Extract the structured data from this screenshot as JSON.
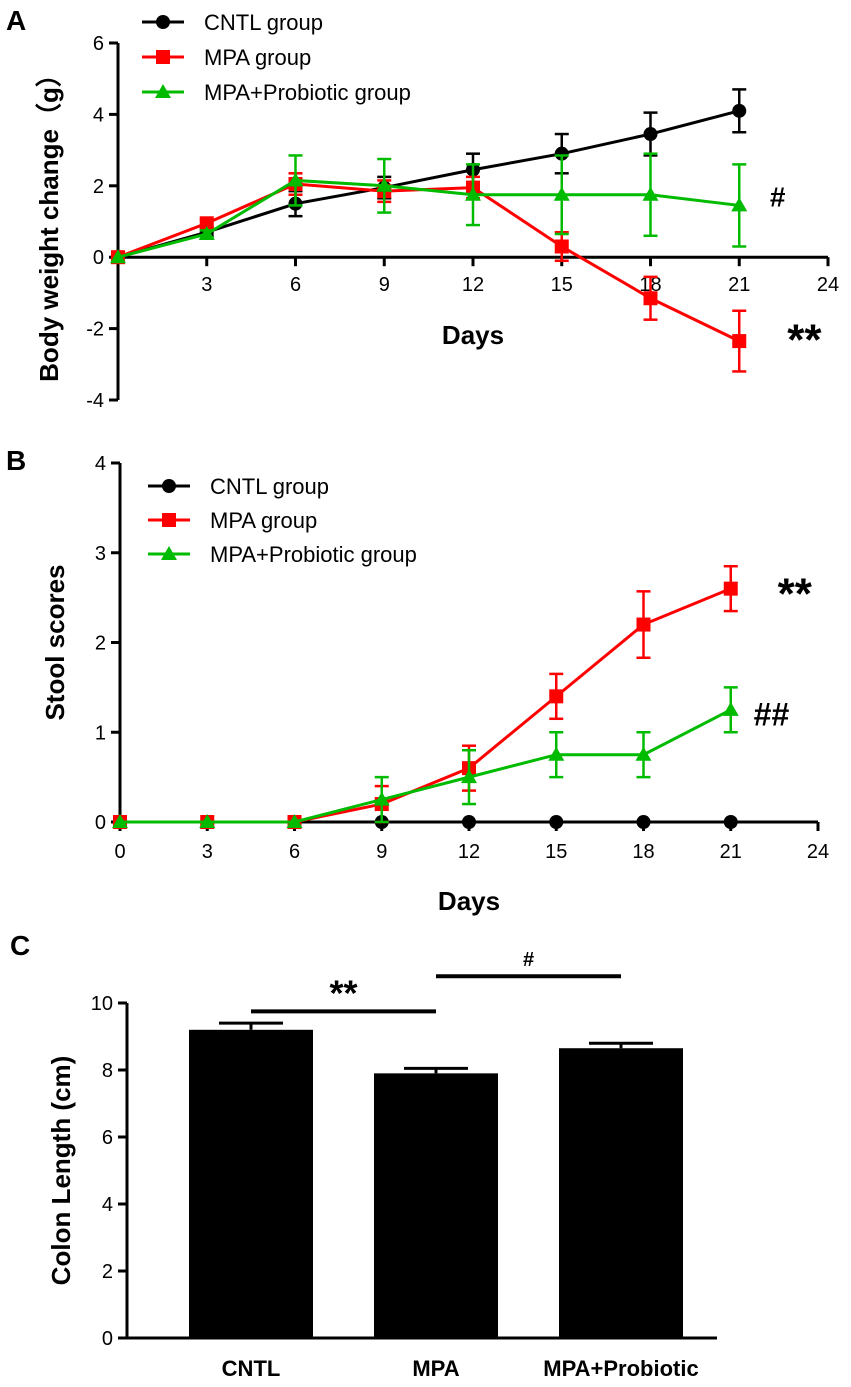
{
  "chart_data": [
    {
      "panel": "A",
      "type": "line",
      "xlabel": "Days",
      "ylabel": "Body weight change（g）",
      "xlim": [
        0,
        24
      ],
      "ylim": [
        -4,
        6
      ],
      "xticks": [
        3,
        6,
        9,
        12,
        15,
        18,
        21,
        24
      ],
      "yticks": [
        -4,
        -2,
        0,
        2,
        4,
        6
      ],
      "legend_position": "top-left",
      "series": [
        {
          "name": "CNTL group",
          "color": "#000000",
          "marker": "circle",
          "x": [
            0,
            3,
            6,
            9,
            12,
            15,
            18,
            21
          ],
          "y": [
            0,
            0.7,
            1.5,
            1.95,
            2.45,
            2.9,
            3.45,
            4.1
          ],
          "err": [
            0,
            0.1,
            0.35,
            0.3,
            0.45,
            0.55,
            0.6,
            0.6
          ]
        },
        {
          "name": "MPA  group",
          "color": "#ff0000",
          "marker": "square",
          "x": [
            0,
            3,
            6,
            9,
            12,
            15,
            18,
            21
          ],
          "y": [
            0,
            0.95,
            2.05,
            1.85,
            1.95,
            0.3,
            -1.15,
            -2.35
          ],
          "err": [
            0,
            0.1,
            0.3,
            0.3,
            0.3,
            0.4,
            0.6,
            0.85
          ]
        },
        {
          "name": "MPA+Probiotic group",
          "color": "#00bb00",
          "marker": "triangle",
          "x": [
            0,
            3,
            6,
            9,
            12,
            15,
            18,
            21
          ],
          "y": [
            0,
            0.65,
            2.15,
            2.0,
            1.75,
            1.75,
            1.75,
            1.45
          ],
          "err": [
            0,
            0.1,
            0.7,
            0.75,
            0.85,
            1.1,
            1.15,
            1.15
          ]
        }
      ],
      "annotations": [
        {
          "text": "#",
          "x": 22.3,
          "y": 1.7,
          "size": "small"
        },
        {
          "text": "**",
          "x": 23.2,
          "y": -2.3,
          "size": "large"
        }
      ]
    },
    {
      "panel": "B",
      "type": "line",
      "xlabel": "Days",
      "ylabel": "Stool scores",
      "xlim": [
        0,
        24
      ],
      "ylim": [
        0,
        4
      ],
      "xticks": [
        0,
        3,
        6,
        9,
        12,
        15,
        18,
        21,
        24
      ],
      "yticks": [
        0,
        1,
        2,
        3,
        4
      ],
      "legend_position": "top-left",
      "series": [
        {
          "name": "CNTL group",
          "color": "#000000",
          "marker": "circle",
          "x": [
            0,
            3,
            6,
            9,
            12,
            15,
            18,
            21
          ],
          "y": [
            0,
            0,
            0,
            0,
            0,
            0,
            0,
            0
          ],
          "err": [
            0,
            0,
            0,
            0,
            0,
            0,
            0,
            0
          ]
        },
        {
          "name": "MPA  group",
          "color": "#ff0000",
          "marker": "square",
          "x": [
            0,
            3,
            6,
            9,
            12,
            15,
            18,
            21
          ],
          "y": [
            0,
            0,
            0,
            0.2,
            0.6,
            1.4,
            2.2,
            2.6
          ],
          "err": [
            0,
            0,
            0,
            0.2,
            0.25,
            0.25,
            0.37,
            0.25
          ]
        },
        {
          "name": "MPA+Probiotic group",
          "color": "#00bb00",
          "marker": "triangle",
          "x": [
            0,
            3,
            6,
            9,
            12,
            15,
            18,
            21
          ],
          "y": [
            0,
            0,
            0,
            0.25,
            0.5,
            0.75,
            0.75,
            1.25
          ],
          "err": [
            0,
            0,
            0,
            0.25,
            0.3,
            0.25,
            0.25,
            0.25
          ]
        }
      ],
      "annotations": [
        {
          "text": "**",
          "x": 23.2,
          "y": 2.55,
          "size": "large"
        },
        {
          "text": "##",
          "x": 22.4,
          "y": 1.2,
          "size": "medium"
        }
      ]
    },
    {
      "panel": "C",
      "type": "bar",
      "xlabel": "",
      "ylabel": "Colon Length (cm)",
      "ylim": [
        0,
        10
      ],
      "yticks": [
        0,
        2,
        4,
        6,
        8,
        10
      ],
      "categories": [
        "CNTL",
        "MPA",
        "MPA+Probiotic"
      ],
      "values": [
        9.2,
        7.9,
        8.65
      ],
      "err": [
        0.2,
        0.15,
        0.15
      ],
      "bar_color": "#000000",
      "significance": [
        {
          "text": "**",
          "from": 0,
          "to": 1,
          "y": 9.75
        },
        {
          "text": "#",
          "from": 1,
          "to": 2,
          "y": 10.8
        }
      ]
    }
  ]
}
